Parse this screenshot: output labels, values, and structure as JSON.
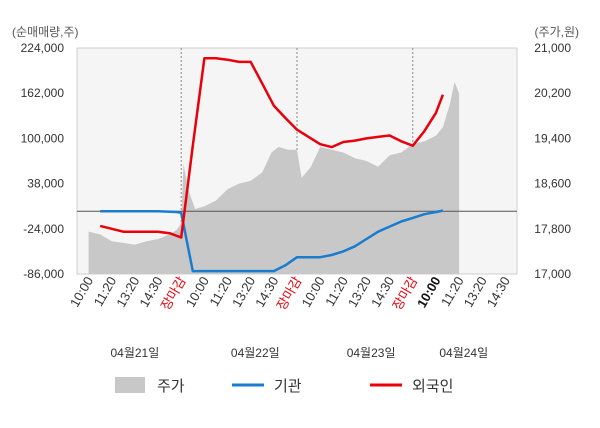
{
  "chart_data": {
    "type": "line",
    "title": "",
    "left_axis": {
      "unit_label": "(순매매량,주)",
      "ylim": [
        -86000,
        224000
      ],
      "ticks": [
        "224,000",
        "162,000",
        "100,000",
        "38,000",
        "-24,000",
        "-86,000"
      ],
      "tick_values": [
        224000,
        162000,
        100000,
        38000,
        -24000,
        -86000
      ]
    },
    "right_axis": {
      "unit_label": "(주가,원)",
      "ylim": [
        17000,
        21000
      ],
      "ticks": [
        "21,000",
        "20,200",
        "19,400",
        "18,600",
        "17,800",
        "17,000"
      ],
      "tick_values": [
        21000,
        20200,
        19400,
        18600,
        17800,
        17000
      ]
    },
    "x_ticks": [
      {
        "label": "10:00",
        "style": "normal"
      },
      {
        "label": "11:20",
        "style": "normal"
      },
      {
        "label": "13:20",
        "style": "normal"
      },
      {
        "label": "14:30",
        "style": "normal"
      },
      {
        "label": "장마감",
        "style": "close"
      },
      {
        "label": "10:00",
        "style": "normal"
      },
      {
        "label": "11:20",
        "style": "normal"
      },
      {
        "label": "13:20",
        "style": "normal"
      },
      {
        "label": "14:30",
        "style": "normal"
      },
      {
        "label": "장마감",
        "style": "close"
      },
      {
        "label": "10:00",
        "style": "normal"
      },
      {
        "label": "11:20",
        "style": "normal"
      },
      {
        "label": "13:20",
        "style": "normal"
      },
      {
        "label": "14:30",
        "style": "normal"
      },
      {
        "label": "장마감",
        "style": "close"
      },
      {
        "label": "10:00",
        "style": "bold"
      },
      {
        "label": "11:20",
        "style": "normal"
      },
      {
        "label": "13:20",
        "style": "normal"
      },
      {
        "label": "14:30",
        "style": "normal"
      }
    ],
    "day_dividers_at_tick": [
      4,
      9,
      14
    ],
    "dates": [
      {
        "label": "04월21일",
        "center_tick": 2
      },
      {
        "label": "04월22일",
        "center_tick": 7.2
      },
      {
        "label": "04월23일",
        "center_tick": 12.2
      },
      {
        "label": "04월24일",
        "center_tick": 16.2
      }
    ],
    "zero_line": 0,
    "series": [
      {
        "name": "주가",
        "kind": "area",
        "axis": "right",
        "color": "#c8c8c8",
        "x": [
          0,
          0.5,
          1,
          1.5,
          2,
          2.5,
          3,
          3.5,
          3.8,
          4,
          4.1,
          4.3,
          4.6,
          5,
          5.5,
          6,
          6.5,
          7,
          7.5,
          7.9,
          8.2,
          8.6,
          9,
          9.2,
          9.6,
          10,
          10.5,
          11,
          11.5,
          12,
          12.5,
          13,
          13.5,
          14,
          14.5,
          15,
          15.3,
          15.6,
          15.8,
          16
        ],
        "values": [
          17750,
          17700,
          17580,
          17550,
          17520,
          17580,
          17620,
          17700,
          17780,
          17900,
          18950,
          18500,
          18150,
          18200,
          18300,
          18500,
          18600,
          18650,
          18800,
          19150,
          19250,
          19200,
          19200,
          18700,
          18900,
          19250,
          19200,
          19150,
          19050,
          19000,
          18900,
          19100,
          19150,
          19300,
          19350,
          19450,
          19600,
          20000,
          20400,
          20200
        ]
      },
      {
        "name": "기관",
        "kind": "line",
        "axis": "left",
        "color": "#1a7ccf",
        "x": [
          0.5,
          1,
          2,
          3,
          3.8,
          4,
          4.5,
          5,
          6,
          7,
          8,
          8.5,
          9,
          10,
          10.5,
          11,
          11.5,
          12,
          12.5,
          13,
          13.5,
          14,
          14.5,
          15,
          15.3
        ],
        "values": [
          0,
          0,
          0,
          0,
          -1000,
          -2000,
          -82000,
          -82000,
          -82000,
          -82000,
          -82000,
          -74000,
          -63000,
          -63000,
          -60000,
          -55000,
          -48000,
          -38000,
          -28000,
          -21000,
          -14000,
          -9000,
          -4000,
          -1000,
          1000
        ]
      },
      {
        "name": "외국인",
        "kind": "line",
        "axis": "left",
        "color": "#e8000b",
        "x": [
          0.5,
          1,
          1.5,
          2,
          2.5,
          3,
          3.5,
          4,
          4.5,
          5,
          5.5,
          6,
          6.5,
          7,
          7.5,
          8,
          8.5,
          9,
          9.5,
          10,
          10.5,
          11,
          11.5,
          12,
          12.5,
          13,
          13.5,
          14,
          14.5,
          15,
          15.3
        ],
        "values": [
          -20000,
          -24000,
          -28000,
          -28000,
          -28000,
          -28000,
          -30000,
          -36000,
          90000,
          210000,
          210000,
          208000,
          205000,
          205000,
          175000,
          145000,
          128000,
          112000,
          102000,
          92000,
          88000,
          95000,
          97000,
          100000,
          102000,
          104000,
          96000,
          90000,
          110000,
          135000,
          160000
        ]
      }
    ],
    "legend": {
      "placement": "bottom",
      "items": [
        {
          "label": "주가",
          "swatch": "area",
          "color": "#c8c8c8"
        },
        {
          "label": "기관",
          "swatch": "line",
          "color": "#1a7ccf"
        },
        {
          "label": "외국인",
          "swatch": "line",
          "color": "#e8000b"
        }
      ]
    }
  }
}
